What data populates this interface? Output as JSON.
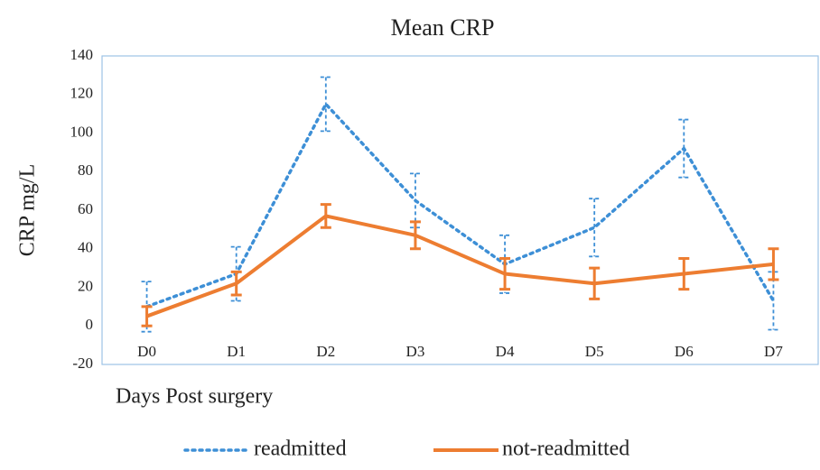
{
  "chart_data": {
    "type": "line",
    "title": "Mean CRP",
    "ylabel": "CRP mg/L",
    "xlabel": "Days Post surgery",
    "categories": [
      "D0",
      "D1",
      "D2",
      "D3",
      "D4",
      "D5",
      "D6",
      "D7"
    ],
    "series": [
      {
        "name": "readmitted",
        "color": "#3d8fd6",
        "linestyle": "dotted",
        "values": [
          10,
          27,
          115,
          65,
          32,
          51,
          92,
          13
        ],
        "errors": [
          13,
          14,
          14,
          14,
          15,
          15,
          15,
          15
        ]
      },
      {
        "name": "not-readmitted",
        "color": "#ed7d31",
        "linestyle": "solid",
        "values": [
          5,
          22,
          57,
          47,
          27,
          22,
          27,
          32
        ],
        "errors": [
          5,
          6,
          6,
          7,
          8,
          8,
          8,
          8
        ]
      }
    ],
    "ylim": [
      -20,
      140
    ],
    "yticks": [
      -20,
      0,
      20,
      40,
      60,
      80,
      100,
      120,
      140
    ],
    "grid": false,
    "legend": "bottom"
  }
}
